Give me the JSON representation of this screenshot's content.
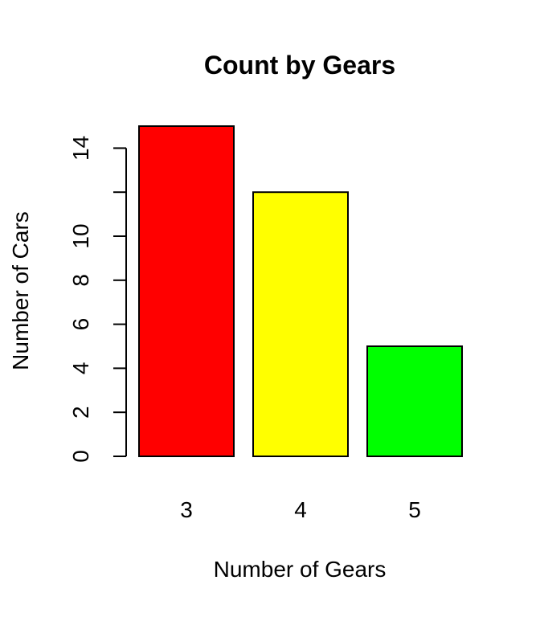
{
  "chart_data": {
    "type": "bar",
    "title": "Count by Gears",
    "xlabel": "Number of Gears",
    "ylabel": "Number of Cars",
    "categories": [
      "3",
      "4",
      "5"
    ],
    "values": [
      15,
      12,
      5
    ],
    "colors": [
      "#ff0000",
      "#ffff00",
      "#00ff00"
    ],
    "ylim": [
      0,
      15
    ],
    "y_ticks": [
      0,
      2,
      4,
      6,
      8,
      10,
      12,
      14
    ],
    "y_tick_labels": [
      "0",
      "2",
      "4",
      "6",
      "8",
      "10",
      "",
      "14"
    ],
    "grid": false,
    "legend": "none"
  }
}
